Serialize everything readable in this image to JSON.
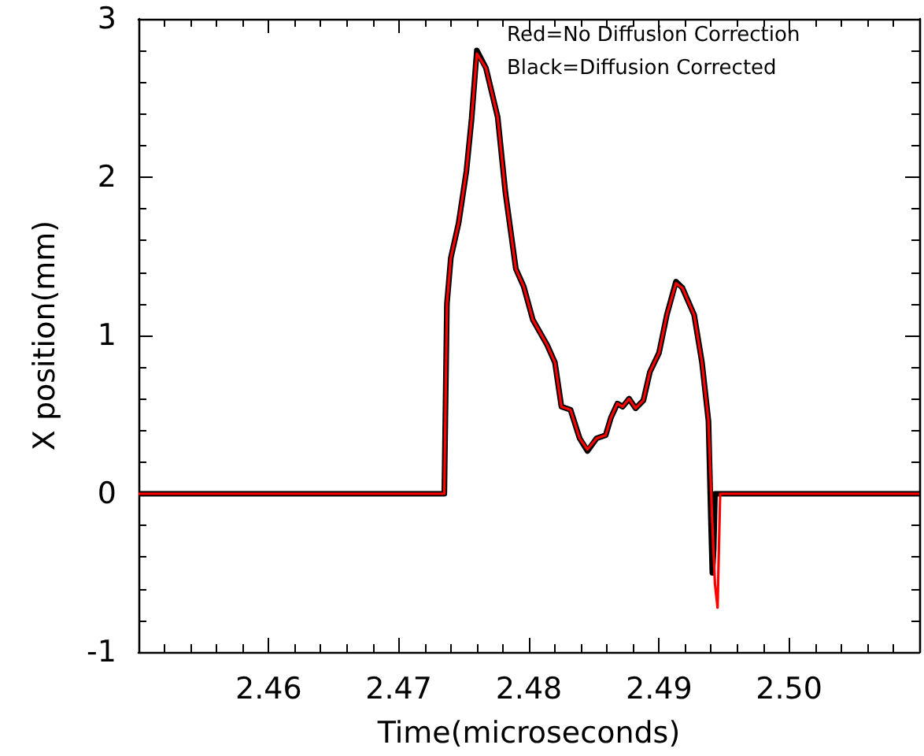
{
  "chart_data": {
    "type": "line",
    "xlabel": "Time(microseconds)",
    "ylabel": "X position(mm)",
    "annotations": [
      "Red=No Diffusion Correction",
      "Black=Diffusion Corrected"
    ],
    "xlim": [
      2.45,
      2.51
    ],
    "xticks": [
      2.46,
      2.47,
      2.48,
      2.49,
      {
        "value": 2.5,
        "label": "2.50"
      }
    ],
    "ylim": [
      -1,
      3
    ],
    "yticks": [
      -1,
      0,
      1,
      2,
      3
    ],
    "grid": false,
    "marker": "none",
    "line_style": "solid",
    "series": [
      {
        "color": "#000000",
        "x": [
          2.45,
          2.4735,
          2.4737,
          2.474,
          2.4746,
          2.4752,
          2.4756,
          2.476,
          2.4767,
          2.4776,
          2.4782,
          2.479,
          2.4796,
          2.4803,
          2.4814,
          2.482,
          2.4825,
          2.4832,
          2.4839,
          2.4845,
          2.4852,
          2.4859,
          2.4863,
          2.4868,
          2.4872,
          2.4877,
          2.4882,
          2.4888,
          2.4893,
          2.49,
          2.4906,
          2.4913,
          2.4918,
          2.4927,
          2.4933,
          2.4938,
          2.494,
          2.4941,
          2.4942,
          2.4943,
          2.51
        ],
        "values": [
          0,
          0,
          1.2,
          1.49,
          1.71,
          2.04,
          2.37,
          2.8,
          2.69,
          2.38,
          1.9,
          1.42,
          1.31,
          1.1,
          0.94,
          0.83,
          0.55,
          0.53,
          0.35,
          0.27,
          0.35,
          0.37,
          0.48,
          0.57,
          0.55,
          0.6,
          0.54,
          0.59,
          0.77,
          0.89,
          1.13,
          1.34,
          1.3,
          1.13,
          0.83,
          0.46,
          -0.2,
          -0.5,
          -0.35,
          0,
          0
        ]
      },
      {
        "color": "#ff0000",
        "x": [
          2.45,
          2.4735,
          2.4737,
          2.474,
          2.4746,
          2.4752,
          2.4756,
          2.476,
          2.4767,
          2.4776,
          2.4782,
          2.479,
          2.4796,
          2.4803,
          2.4814,
          2.482,
          2.4825,
          2.4832,
          2.4839,
          2.4845,
          2.4852,
          2.4859,
          2.4863,
          2.4868,
          2.4872,
          2.4877,
          2.4882,
          2.4888,
          2.4893,
          2.49,
          2.4906,
          2.4913,
          2.4918,
          2.4927,
          2.4933,
          2.4938,
          2.4941,
          2.4943,
          2.4945,
          2.4946,
          2.4947,
          2.51
        ],
        "values": [
          0,
          0,
          1.2,
          1.49,
          1.71,
          2.04,
          2.37,
          2.78,
          2.69,
          2.38,
          1.9,
          1.42,
          1.31,
          1.1,
          0.94,
          0.83,
          0.55,
          0.53,
          0.35,
          0.28,
          0.35,
          0.37,
          0.48,
          0.57,
          0.55,
          0.6,
          0.54,
          0.59,
          0.77,
          0.89,
          1.13,
          1.33,
          1.3,
          1.13,
          0.83,
          0.46,
          -0.2,
          -0.57,
          -0.72,
          -0.35,
          0,
          0
        ]
      }
    ]
  }
}
